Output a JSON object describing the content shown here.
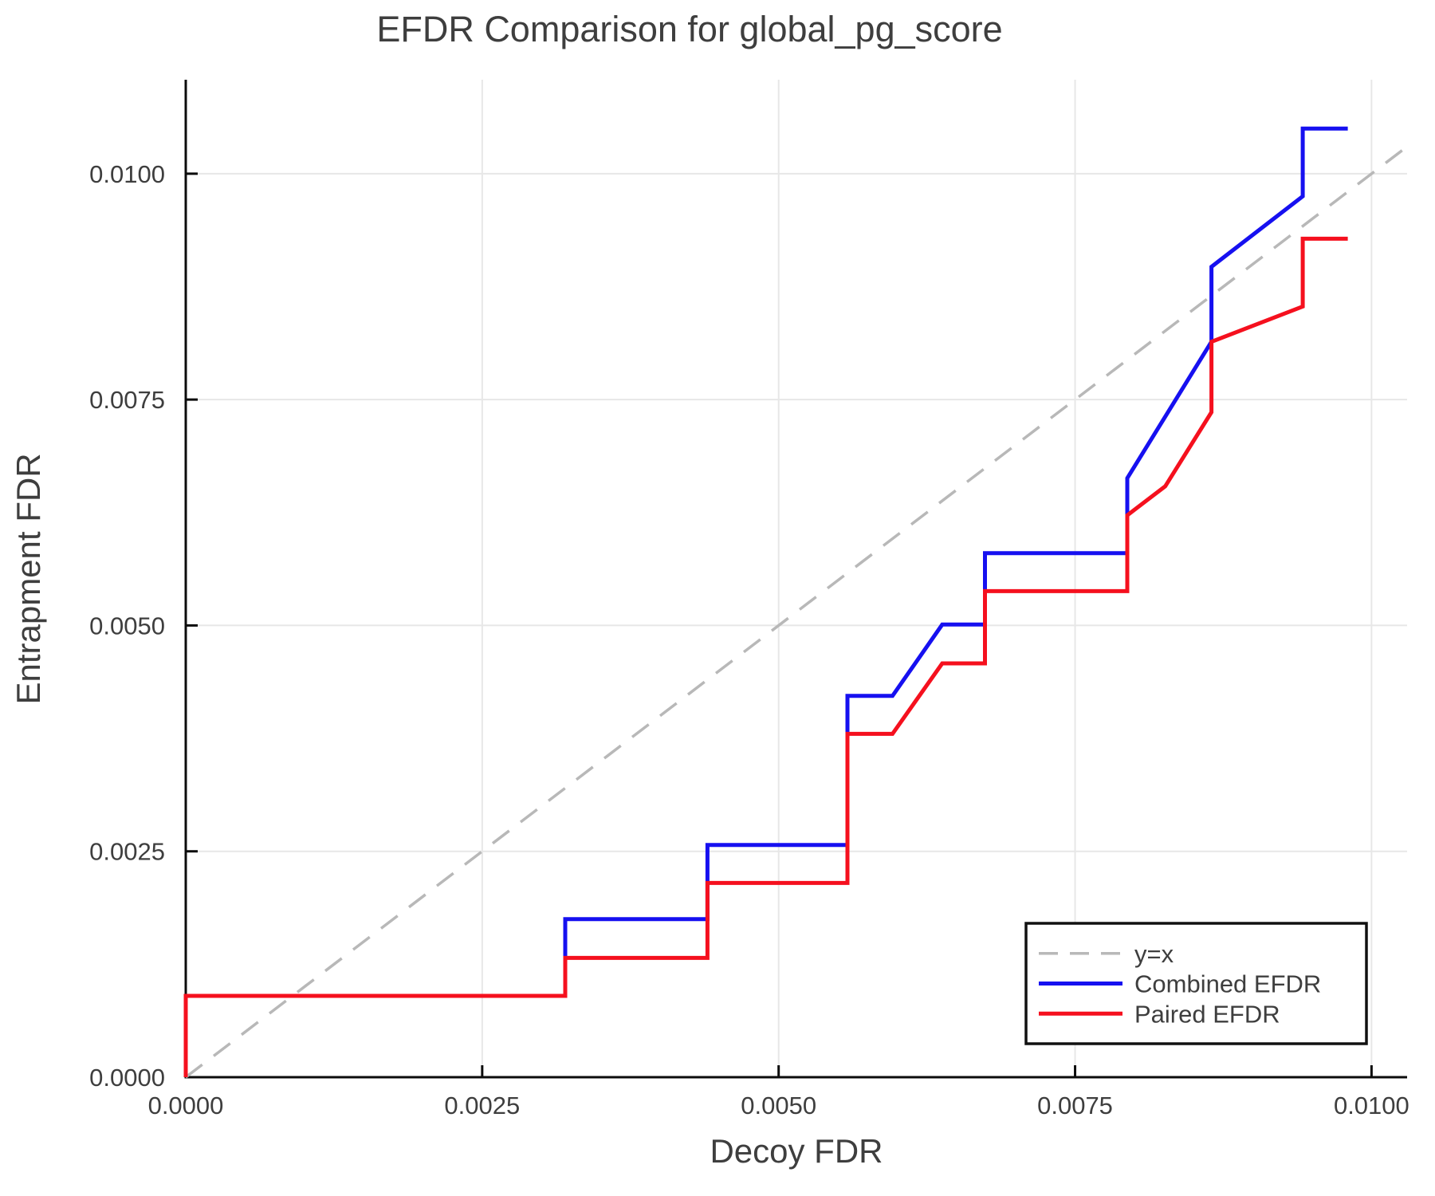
{
  "chart_data": {
    "type": "line",
    "title": "EFDR Comparison for global_pg_score",
    "xlabel": "Decoy FDR",
    "ylabel": "Entrapment FDR",
    "xlim": [
      0,
      0.0103
    ],
    "ylim": [
      0,
      0.01104
    ],
    "grid": true,
    "xticks": {
      "values": [
        0,
        0.0025,
        0.005,
        0.0075,
        0.01
      ],
      "labels": [
        "0.0000",
        "0.0025",
        "0.0050",
        "0.0075",
        "0.0100"
      ]
    },
    "yticks": {
      "values": [
        0,
        0.0025,
        0.005,
        0.0075,
        0.01
      ],
      "labels": [
        "0.0000",
        "0.0025",
        "0.0050",
        "0.0075",
        "0.0100"
      ]
    },
    "legend": {
      "position": "bottom-right",
      "entries": [
        "y=x",
        "Combined EFDR",
        "Paired EFDR"
      ]
    },
    "series": [
      {
        "name": "y=x",
        "color": "#b8b8b8",
        "style": "dashed",
        "width": 3.5,
        "points": [
          [
            0,
            0
          ],
          [
            0.0103,
            0.0103
          ]
        ]
      },
      {
        "name": "Combined EFDR",
        "color": "#1610f0",
        "style": "solid",
        "width": 5,
        "points": [
          [
            0,
            0
          ],
          [
            0,
            0.0009
          ],
          [
            0.0032,
            0.0009
          ],
          [
            0.0032,
            0.00175
          ],
          [
            0.0044,
            0.00175
          ],
          [
            0.0044,
            0.00257
          ],
          [
            0.00558,
            0.00257
          ],
          [
            0.00558,
            0.00422
          ],
          [
            0.00596,
            0.00422
          ],
          [
            0.00638,
            0.00501
          ],
          [
            0.00674,
            0.00501
          ],
          [
            0.00674,
            0.0058
          ],
          [
            0.00794,
            0.0058
          ],
          [
            0.00794,
            0.00663
          ],
          [
            0.00865,
            0.00814
          ],
          [
            0.00865,
            0.00897
          ],
          [
            0.00942,
            0.00975
          ],
          [
            0.00942,
            0.0105
          ],
          [
            0.0098,
            0.0105
          ]
        ]
      },
      {
        "name": "Paired EFDR",
        "color": "#f5101e",
        "style": "solid",
        "width": 5,
        "points": [
          [
            0,
            0
          ],
          [
            0,
            0.0009
          ],
          [
            0.0032,
            0.0009
          ],
          [
            0.0032,
            0.00132
          ],
          [
            0.0044,
            0.00132
          ],
          [
            0.0044,
            0.00215
          ],
          [
            0.00558,
            0.00215
          ],
          [
            0.00558,
            0.0038
          ],
          [
            0.00596,
            0.0038
          ],
          [
            0.00638,
            0.00458
          ],
          [
            0.00674,
            0.00458
          ],
          [
            0.00674,
            0.00538
          ],
          [
            0.00794,
            0.00538
          ],
          [
            0.00794,
            0.00622
          ],
          [
            0.00826,
            0.00654
          ],
          [
            0.00865,
            0.00736
          ],
          [
            0.00865,
            0.00814
          ],
          [
            0.00942,
            0.00853
          ],
          [
            0.00942,
            0.00928
          ],
          [
            0.0098,
            0.00928
          ]
        ]
      }
    ]
  }
}
